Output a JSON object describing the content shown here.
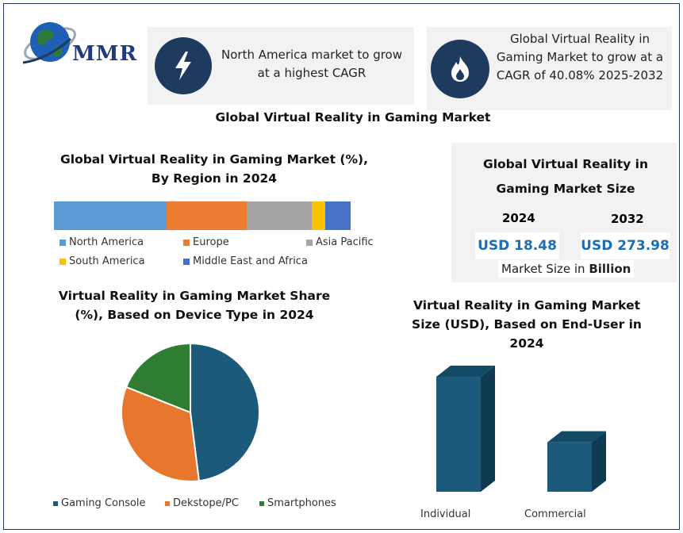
{
  "brand": {
    "logo_text": "MMR"
  },
  "callouts": [
    {
      "text": "North America market to grow at a highest CAGR",
      "icon": "lightning-bolt-icon"
    },
    {
      "text": "Global Virtual Reality in Gaming Market to grow at a CAGR of 40.08% 2025-2032",
      "icon": "flame-icon"
    }
  ],
  "main_title": "Global Virtual Reality in Gaming Market",
  "market_size": {
    "title": "Global Virtual Reality in Gaming Market Size",
    "year_a": "2024",
    "year_b": "2032",
    "value_a": "USD 18.48",
    "value_b": "USD 273.98",
    "footer_prefix": "Market Size in ",
    "footer_unit": "Billion"
  },
  "chart_data": [
    {
      "type": "bar",
      "stacked": "100%",
      "orientation": "horizontal",
      "title": "Global Virtual Reality in Gaming Market (%), By Region in 2024",
      "series": [
        {
          "name": "North America",
          "value": 38,
          "color": "#5b9bd5"
        },
        {
          "name": "Europe",
          "value": 27,
          "color": "#ed7d31"
        },
        {
          "name": "Asia Pacific",
          "value": 22,
          "color": "#a5a5a5"
        },
        {
          "name": "South America",
          "value": 4.5,
          "color": "#ffc000"
        },
        {
          "name": "Middle East and Africa",
          "value": 8.5,
          "color": "#4472c4"
        }
      ],
      "legend_position": "bottom"
    },
    {
      "type": "pie",
      "title": "Virtual Reality in Gaming Market Share (%), Based on Device Type in 2024",
      "series": [
        {
          "name": "Gaming Console",
          "value": 48,
          "color": "#1b5a7a"
        },
        {
          "name": "Dekstope/PC",
          "value": 33,
          "color": "#e8772e"
        },
        {
          "name": "Smartphones",
          "value": 19,
          "color": "#2e7d32"
        }
      ],
      "legend_position": "bottom"
    },
    {
      "type": "bar",
      "style": "3d",
      "title": "Virtual Reality in Gaming Market Size (USD), Based on End-User in 2024",
      "categories": [
        "Individual",
        "Commercial"
      ],
      "values": [
        100,
        43
      ],
      "color": "#1b5a7a",
      "ylim": [
        0,
        100
      ]
    }
  ]
}
